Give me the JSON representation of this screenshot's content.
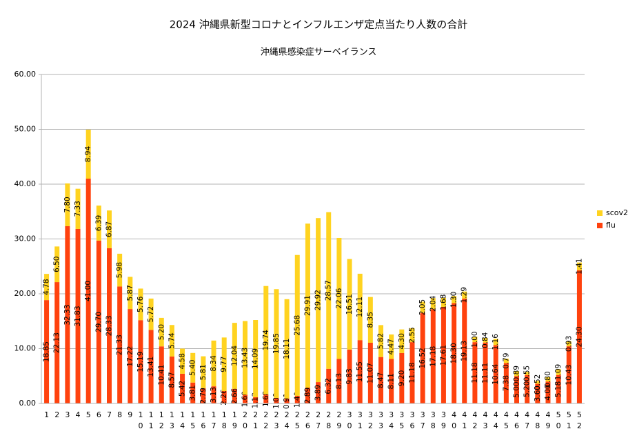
{
  "chart_data": {
    "type": "stacked_bar",
    "title": "2024  沖縄県新型コロナとインフルエンザ定点当たり人数の合計",
    "subtitle": "沖縄県感染症サーベイランス",
    "categories": [
      "1",
      "2",
      "3",
      "4",
      "5",
      "6",
      "7",
      "8",
      "9",
      "10",
      "11",
      "12",
      "13",
      "14",
      "15",
      "16",
      "17",
      "18",
      "19",
      "20",
      "21",
      "22",
      "23",
      "24",
      "25",
      "26",
      "27",
      "28",
      "29",
      "30",
      "31",
      "32",
      "33",
      "34",
      "35",
      "36",
      "37",
      "38",
      "39",
      "40",
      "41",
      "42",
      "43",
      "44",
      "45",
      "46",
      "47",
      "48",
      "49",
      "50",
      "51",
      "52"
    ],
    "series": [
      {
        "name": "flu",
        "color": "#ff420e",
        "values": [
          18.85,
          22.13,
          32.33,
          31.83,
          41.0,
          29.7,
          28.33,
          21.33,
          17.22,
          15.19,
          13.41,
          10.41,
          8.57,
          5.42,
          3.81,
          2.79,
          3.13,
          2.26,
          2.66,
          1.6,
          1.13,
          1.68,
          1.0,
          0.91,
          1.4,
          2.89,
          3.89,
          6.32,
          8.13,
          9.83,
          11.55,
          11.07,
          8.47,
          8.11,
          9.2,
          11.18,
          16.52,
          17.18,
          17.61,
          18.3,
          19.13,
          11.18,
          11.11,
          10.64,
          7.38,
          5.0,
          5.2,
          3.6,
          4.0,
          5.18,
          10.43,
          24.3
        ],
        "value_labels": [
          "18.85",
          "22.13",
          "32.33",
          "31.83",
          "41.00",
          "29.70",
          "28.33",
          "21.33",
          "17.22",
          "15.19",
          "13.41",
          "10.41",
          "8.57",
          "5.42",
          "3.81",
          "2.79",
          "3.13",
          "2.26",
          "2.66",
          "1.60",
          "1.13",
          "1.68",
          "1.00",
          "0.91",
          "1.40",
          "2.89",
          "3.89",
          "6.32",
          "8.13",
          "9.83",
          "11.55",
          "11.07",
          "8.47",
          "8.11",
          "9.20",
          "11.18",
          "16.52",
          "17.18",
          "17.61",
          "18.30",
          "19.13",
          "11.18",
          "11.11",
          "10.64",
          "7.38",
          "5.00",
          "5.20",
          "3.60",
          "4.00",
          "5.18",
          "10.43",
          "24.30"
        ]
      },
      {
        "name": "scov2",
        "color": "#ffd320",
        "values": [
          4.78,
          6.5,
          7.8,
          7.33,
          8.94,
          6.39,
          6.87,
          5.98,
          5.87,
          5.76,
          5.72,
          5.2,
          5.74,
          4.58,
          5.4,
          5.81,
          8.34,
          9.77,
          12.04,
          13.43,
          14.09,
          19.74,
          19.85,
          18.11,
          25.68,
          29.91,
          29.92,
          28.57,
          22.06,
          16.51,
          12.11,
          8.35,
          5.82,
          4.47,
          4.3,
          2.55,
          2.05,
          2.04,
          1.68,
          1.3,
          1.29,
          1.0,
          0.84,
          1.16,
          0.79,
          0.89,
          0.55,
          0.52,
          0.8,
          1.09,
          0.93,
          1.41
        ],
        "value_labels": [
          "4.78",
          "6.50",
          "7.80",
          "7.33",
          "8.94",
          "6.39",
          "6.87",
          "5.98",
          "5.87",
          "5.76",
          "5.72",
          "5.20",
          "5.74",
          "4.58",
          "5.40",
          "5.81",
          "8.34",
          "9.77",
          "12.04",
          "13.43",
          "14.09",
          "19.74",
          "19.85",
          "18.11",
          "25.68",
          "29.91",
          "29.92",
          "28.57",
          "22.06",
          "16.51",
          "12.11",
          "8.35",
          "5.82",
          "4.47",
          "4.30",
          "2.55",
          "2.05",
          "2.04",
          "1.68",
          "1.30",
          "1.29",
          "1.00",
          "0.84",
          "1.16",
          "0.79",
          "0.89",
          "0.55",
          "0.52",
          "0.80",
          "1.09",
          "0.93",
          "1.41"
        ]
      }
    ],
    "ylim": [
      0,
      60
    ],
    "yticks": [
      {
        "value": 0,
        "label": "0.00"
      },
      {
        "value": 10,
        "label": "10.00"
      },
      {
        "value": 20,
        "label": "20.00"
      },
      {
        "value": 30,
        "label": "30.00"
      },
      {
        "value": 40,
        "label": "40.00"
      },
      {
        "value": 50,
        "label": "50.00"
      },
      {
        "value": 60,
        "label": "60.00"
      }
    ],
    "grid": true,
    "legend": "right"
  }
}
